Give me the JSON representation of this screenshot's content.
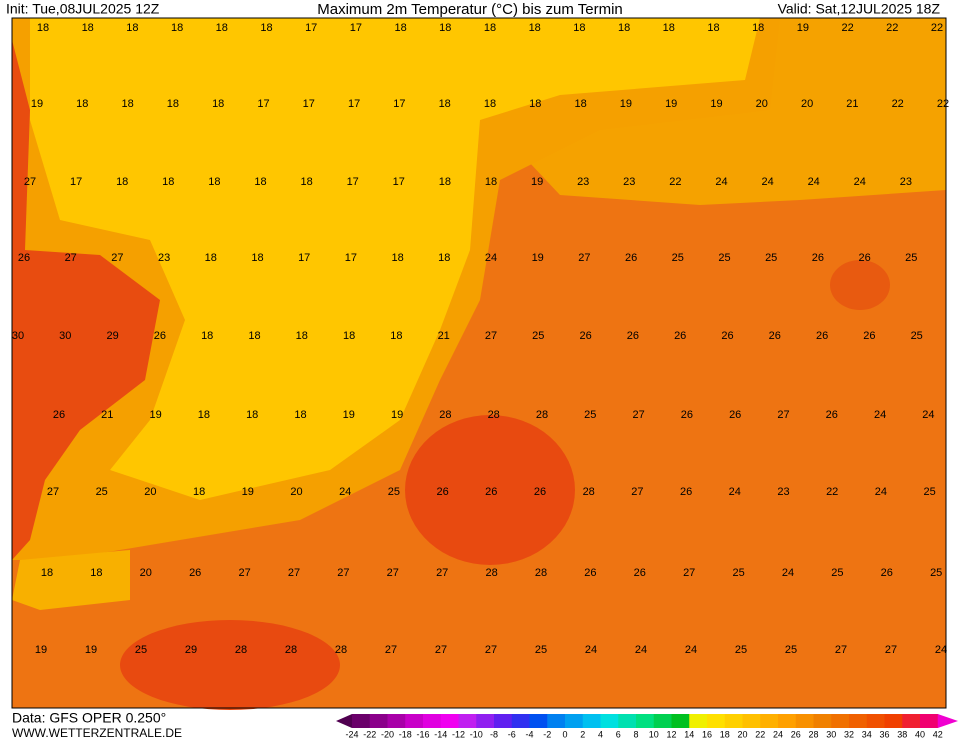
{
  "header": {
    "init": "Init: Tue,08JUL2025 12Z",
    "title": "Maximum 2m Temperatur (°C) bis zum Termin",
    "valid": "Valid: Sat,12JUL2025 18Z"
  },
  "map": {
    "rows": [
      [
        18,
        18,
        18,
        18,
        18,
        18,
        17,
        17,
        18,
        18,
        18,
        18,
        18,
        18,
        18,
        18,
        18,
        19,
        22,
        22,
        22
      ],
      [
        19,
        18,
        18,
        18,
        18,
        17,
        17,
        17,
        17,
        18,
        18,
        18,
        18,
        19,
        19,
        19,
        20,
        20,
        21,
        22,
        22
      ],
      [
        27,
        17,
        18,
        18,
        18,
        18,
        18,
        17,
        17,
        18,
        18,
        19,
        23,
        23,
        22,
        24,
        24,
        24,
        24,
        23
      ],
      [
        26,
        27,
        27,
        23,
        18,
        18,
        17,
        17,
        18,
        18,
        24,
        19,
        27,
        26,
        25,
        25,
        25,
        26,
        26,
        25
      ],
      [
        30,
        30,
        29,
        26,
        18,
        18,
        18,
        18,
        18,
        21,
        27,
        25,
        26,
        26,
        26,
        26,
        26,
        26,
        26,
        25
      ],
      [
        26,
        21,
        19,
        18,
        18,
        18,
        19,
        19,
        28,
        28,
        28,
        25,
        27,
        26,
        26,
        27,
        26,
        24,
        24
      ],
      [
        27,
        25,
        20,
        18,
        19,
        20,
        24,
        25,
        26,
        26,
        26,
        28,
        27,
        26,
        24,
        23,
        22,
        24,
        25
      ],
      [
        18,
        18,
        20,
        26,
        27,
        27,
        27,
        27,
        27,
        28,
        28,
        26,
        26,
        27,
        25,
        24,
        25,
        26,
        25
      ],
      [
        19,
        19,
        25,
        29,
        28,
        28,
        28,
        27,
        27,
        27,
        25,
        24,
        24,
        24,
        25,
        25,
        27,
        27,
        24
      ]
    ]
  },
  "legend": {
    "labels": [
      -24,
      -22,
      -20,
      -18,
      -16,
      -14,
      -12,
      -10,
      -8,
      -6,
      -4,
      -2,
      0,
      2,
      4,
      6,
      8,
      10,
      12,
      14,
      16,
      18,
      20,
      22,
      24,
      26,
      28,
      30,
      32,
      34,
      36,
      38,
      40,
      42
    ]
  },
  "footer": {
    "source": "Data: GFS OPER 0.250°",
    "website": "WWW.WETTERZENTRALE.DE"
  }
}
